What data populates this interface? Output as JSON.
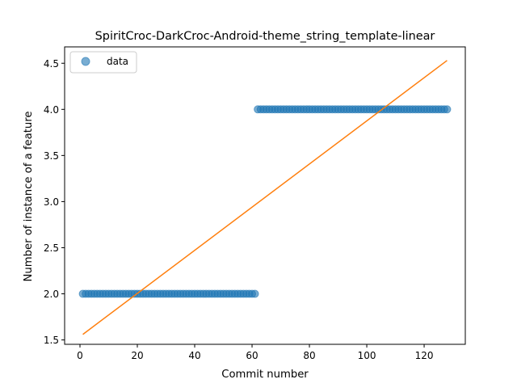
{
  "chart_data": {
    "type": "scatter",
    "title": "SpiritCroc-DarkCroc-Android-theme_string_template-linear",
    "xlabel": "Commit number",
    "ylabel": "Number of instance of a feature",
    "xlim": [
      -5.35,
      134.35
    ],
    "ylim": [
      1.4525,
      4.6775
    ],
    "x_ticks": [
      0,
      20,
      40,
      60,
      80,
      100,
      120
    ],
    "y_ticks": [
      1.5,
      2.0,
      2.5,
      3.0,
      3.5,
      4.0,
      4.5
    ],
    "x_tick_labels": [
      "0",
      "20",
      "40",
      "60",
      "80",
      "100",
      "120"
    ],
    "y_tick_labels": [
      "1.5",
      "2.0",
      "2.5",
      "3.0",
      "3.5",
      "4.0",
      "4.5"
    ],
    "grid": false,
    "legend": {
      "placement": "upper-left",
      "entries": [
        "data"
      ]
    },
    "series": [
      {
        "name": "data",
        "kind": "scatter",
        "color": "#1f77b4",
        "alpha": 0.6,
        "segments": [
          {
            "x_start": 1,
            "x_end": 61,
            "y": 2
          },
          {
            "x_start": 62,
            "x_end": 128,
            "y": 4
          }
        ]
      },
      {
        "kind": "line",
        "color": "#ff7f0e",
        "x": [
          1,
          128
        ],
        "y": [
          1.56,
          4.53
        ]
      }
    ]
  }
}
